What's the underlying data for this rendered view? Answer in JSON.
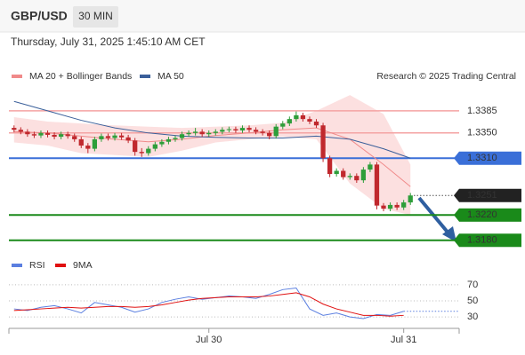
{
  "header": {
    "symbol": "GBP/USD",
    "interval": "30 MIN",
    "timestamp": "Thursday, July 31, 2025 1:45:10 AM CET"
  },
  "chart_data": [
    {
      "type": "candlestick",
      "credit": "Research © 2025 Trading Central",
      "up_color": "#2e9e3a",
      "down_color": "#c0282d",
      "ylim": [
        1.316,
        1.342
      ],
      "open": [
        1.3358,
        1.3355,
        1.3352,
        1.3348,
        1.3346,
        1.335,
        1.3347,
        1.3344,
        1.3348,
        1.3345,
        1.334,
        1.333,
        1.3325,
        1.334,
        1.3345,
        1.3342,
        1.3346,
        1.3343,
        1.3338,
        1.332,
        1.3318,
        1.3325,
        1.3332,
        1.3336,
        1.334,
        1.3342,
        1.3348,
        1.335,
        1.3352,
        1.3348,
        1.335,
        1.3352,
        1.3355,
        1.3356,
        1.3354,
        1.3358,
        1.3355,
        1.3352,
        1.335,
        1.3345,
        1.336,
        1.3365,
        1.3372,
        1.3378,
        1.3372,
        1.3368,
        1.3362,
        1.331,
        1.3285,
        1.329,
        1.328,
        1.3282,
        1.3275,
        1.3292,
        1.33,
        1.3235,
        1.323,
        1.3236,
        1.3232,
        1.324
      ],
      "high": [
        1.3362,
        1.3359,
        1.3356,
        1.3352,
        1.3354,
        1.3354,
        1.3351,
        1.3352,
        1.3352,
        1.3349,
        1.3344,
        1.3334,
        1.3344,
        1.3349,
        1.3349,
        1.335,
        1.335,
        1.3347,
        1.3342,
        1.3326,
        1.3329,
        1.3336,
        1.334,
        1.3344,
        1.3346,
        1.3352,
        1.3354,
        1.3358,
        1.3356,
        1.3354,
        1.3356,
        1.3359,
        1.336,
        1.336,
        1.3362,
        1.3362,
        1.3359,
        1.3356,
        1.3354,
        1.3364,
        1.3369,
        1.3376,
        1.3384,
        1.3382,
        1.3376,
        1.3372,
        1.3366,
        1.3314,
        1.3294,
        1.3294,
        1.3286,
        1.3286,
        1.3296,
        1.3304,
        1.3304,
        1.3239,
        1.324,
        1.324,
        1.3244,
        1.3255
      ],
      "low": [
        1.3351,
        1.3348,
        1.3344,
        1.3342,
        1.3342,
        1.3343,
        1.334,
        1.334,
        1.3341,
        1.3336,
        1.3326,
        1.3318,
        1.3321,
        1.3336,
        1.3338,
        1.3338,
        1.3339,
        1.3334,
        1.3314,
        1.3312,
        1.3314,
        1.3321,
        1.3328,
        1.3332,
        1.3336,
        1.3338,
        1.3344,
        1.3346,
        1.3344,
        1.3344,
        1.3346,
        1.3348,
        1.3351,
        1.335,
        1.335,
        1.3351,
        1.3348,
        1.3346,
        1.334,
        1.3341,
        1.3356,
        1.3361,
        1.3368,
        1.3368,
        1.3364,
        1.3358,
        1.3304,
        1.328,
        1.3281,
        1.3276,
        1.3276,
        1.3271,
        1.3271,
        1.3288,
        1.3229,
        1.3226,
        1.3226,
        1.3228,
        1.3228,
        1.3236
      ],
      "close": [
        1.3355,
        1.3352,
        1.3348,
        1.3346,
        1.335,
        1.3347,
        1.3344,
        1.3348,
        1.3345,
        1.334,
        1.333,
        1.3325,
        1.334,
        1.3345,
        1.3342,
        1.3346,
        1.3343,
        1.3338,
        1.332,
        1.3318,
        1.3325,
        1.3332,
        1.3336,
        1.334,
        1.3342,
        1.3348,
        1.335,
        1.3352,
        1.3348,
        1.335,
        1.3352,
        1.3355,
        1.3356,
        1.3354,
        1.3358,
        1.3355,
        1.3352,
        1.335,
        1.3345,
        1.336,
        1.3365,
        1.3372,
        1.3378,
        1.3372,
        1.3368,
        1.3362,
        1.331,
        1.3285,
        1.329,
        1.328,
        1.3282,
        1.3275,
        1.3292,
        1.33,
        1.3235,
        1.323,
        1.3236,
        1.3232,
        1.324,
        1.3251
      ],
      "overlays": [
        {
          "name": "MA 20 + Bollinger Bands",
          "color": "#f08a8a",
          "band_color": "#fbd3d3",
          "x": [
            0,
            5,
            10,
            15,
            20,
            25,
            30,
            35,
            40,
            45,
            50,
            55,
            59
          ],
          "values": [
            1.3352,
            1.335,
            1.3345,
            1.334,
            1.3336,
            1.334,
            1.3346,
            1.335,
            1.3355,
            1.3358,
            1.334,
            1.33,
            1.3265
          ],
          "upper": [
            1.3375,
            1.3368,
            1.3365,
            1.3362,
            1.336,
            1.3358,
            1.336,
            1.3362,
            1.3366,
            1.3385,
            1.341,
            1.338,
            1.33
          ],
          "lower": [
            1.3335,
            1.333,
            1.3318,
            1.3315,
            1.3312,
            1.3322,
            1.3335,
            1.334,
            1.3344,
            1.334,
            1.327,
            1.323,
            1.322
          ]
        },
        {
          "name": "MA 50",
          "color": "#3a5f9a",
          "x": [
            0,
            5,
            10,
            15,
            20,
            25,
            30,
            35,
            40,
            45,
            50,
            55,
            59
          ],
          "values": [
            1.34,
            1.3385,
            1.337,
            1.3358,
            1.335,
            1.3345,
            1.3343,
            1.3342,
            1.3342,
            1.3345,
            1.334,
            1.3325,
            1.331
          ]
        }
      ],
      "levels": [
        {
          "value": 1.3385,
          "label": "1.3385",
          "kind": "resistance",
          "color": "#f4a3a3",
          "text_color": "#d0312d"
        },
        {
          "value": 1.335,
          "label": "1.3350",
          "kind": "resistance",
          "color": "#f4a3a3",
          "text_color": "#d0312d"
        },
        {
          "value": 1.331,
          "label": "1.3310",
          "kind": "pivot",
          "color": "#3a6fd8",
          "text_color": "#ffffff"
        },
        {
          "value": 1.3251,
          "label": "1.3251",
          "kind": "last",
          "color": "#555555",
          "text_color": "#ffffff",
          "box_color": "#222222"
        },
        {
          "value": 1.322,
          "label": "1.3220",
          "kind": "support",
          "color": "#1a8a1a",
          "text_color": "#ffffff"
        },
        {
          "value": 1.318,
          "label": "1.3180",
          "kind": "support",
          "color": "#1a8a1a",
          "text_color": "#ffffff"
        }
      ],
      "xticks": [
        {
          "value": 29,
          "label": "Jul 30"
        },
        {
          "value": 58,
          "label": "Jul 31"
        }
      ]
    },
    {
      "type": "line",
      "ylim": [
        18,
        82
      ],
      "yticks": [
        30,
        50,
        70
      ],
      "grid": true,
      "series": [
        {
          "name": "RSI",
          "color": "#5b7fe0",
          "x": [
            0,
            2,
            4,
            6,
            8,
            10,
            12,
            14,
            16,
            18,
            20,
            22,
            24,
            26,
            28,
            30,
            32,
            34,
            36,
            38,
            40,
            42,
            44,
            46,
            48,
            50,
            52,
            54,
            56,
            58
          ],
          "values": [
            40,
            38,
            42,
            44,
            40,
            35,
            48,
            45,
            42,
            36,
            40,
            48,
            52,
            55,
            52,
            54,
            56,
            55,
            53,
            58,
            64,
            66,
            40,
            32,
            35,
            30,
            28,
            33,
            32,
            37
          ]
        },
        {
          "name": "9MA",
          "color": "#e01010",
          "x": [
            0,
            2,
            4,
            6,
            8,
            10,
            12,
            14,
            16,
            18,
            20,
            22,
            24,
            26,
            28,
            30,
            32,
            34,
            36,
            38,
            40,
            42,
            44,
            46,
            48,
            50,
            52,
            54,
            56,
            58
          ],
          "values": [
            38,
            39,
            40,
            41,
            42,
            41,
            42,
            43,
            43,
            42,
            43,
            45,
            48,
            51,
            53,
            54,
            55,
            55,
            55,
            56,
            58,
            60,
            55,
            46,
            40,
            36,
            32,
            32,
            31,
            32
          ]
        }
      ]
    }
  ]
}
